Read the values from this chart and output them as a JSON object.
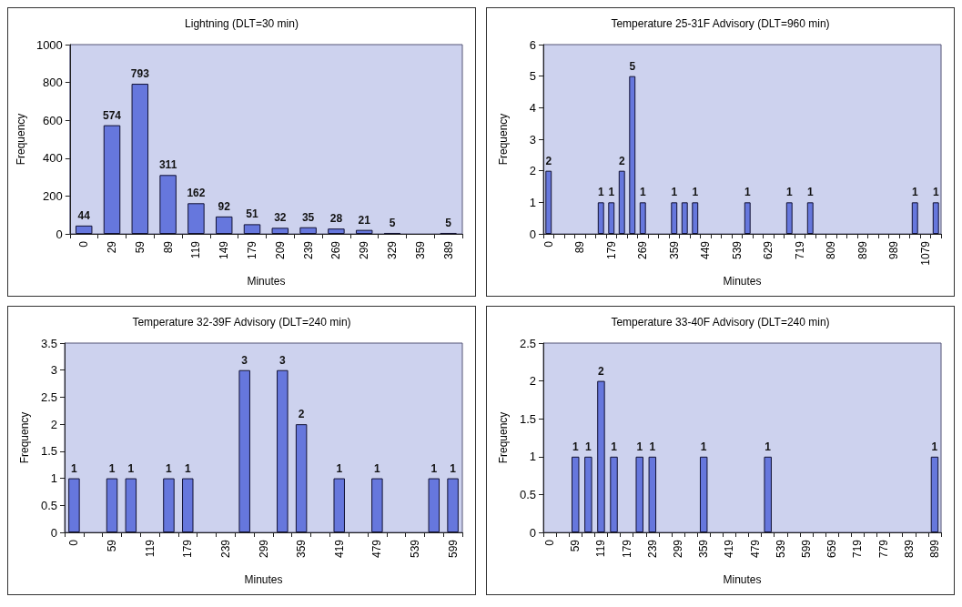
{
  "chart_data": [
    {
      "type": "bar",
      "title": "Lightning (DLT=30 min)",
      "xlabel": "Minutes",
      "ylabel": "Frequency",
      "color": "#6677dd",
      "categories": [
        "0",
        "29",
        "59",
        "89",
        "119",
        "149",
        "179",
        "209",
        "239",
        "269",
        "299",
        "329",
        "359",
        "389"
      ],
      "values": [
        44,
        574,
        793,
        311,
        162,
        92,
        51,
        32,
        35,
        28,
        21,
        5,
        0,
        5
      ],
      "value_labels": [
        "44",
        "574",
        "793",
        "311",
        "162",
        "92",
        "51",
        "32",
        "35",
        "28",
        "21",
        "5",
        null,
        "5"
      ],
      "ylim": [
        0,
        1000
      ],
      "yticks": [
        0,
        200,
        400,
        600,
        800,
        1000
      ]
    },
    {
      "type": "bar",
      "title": "Temperature 25-31F Advisory (DLT=960 min)",
      "xlabel": "Minutes",
      "ylabel": "Frequency",
      "color": "#6677dd",
      "categories": [
        "0",
        null,
        null,
        "89",
        null,
        null,
        "179",
        null,
        null,
        "269",
        null,
        null,
        "359",
        null,
        null,
        "449",
        null,
        null,
        "539",
        null,
        null,
        "629",
        null,
        null,
        "719",
        null,
        null,
        "809",
        null,
        null,
        "899",
        null,
        null,
        "989",
        null,
        null,
        "1079",
        null
      ],
      "values": [
        2,
        0,
        0,
        0,
        0,
        1,
        1,
        2,
        5,
        1,
        0,
        0,
        1,
        1,
        1,
        0,
        0,
        0,
        0,
        1,
        0,
        0,
        0,
        1,
        0,
        1,
        0,
        0,
        0,
        0,
        0,
        0,
        0,
        0,
        0,
        1,
        0,
        1
      ],
      "value_labels": [
        "2",
        null,
        null,
        null,
        null,
        "1",
        "1",
        "2",
        "5",
        "1",
        null,
        null,
        "1",
        null,
        "1",
        null,
        null,
        null,
        null,
        "1",
        null,
        null,
        null,
        "1",
        null,
        "1",
        null,
        null,
        null,
        null,
        null,
        null,
        null,
        null,
        null,
        "1",
        null,
        "1"
      ],
      "ylim": [
        0,
        6
      ],
      "yticks": [
        0,
        1,
        2,
        3,
        4,
        5,
        6
      ]
    },
    {
      "type": "bar",
      "title": "Temperature 32-39F Advisory (DLT=240 min)",
      "xlabel": "Minutes",
      "ylabel": "Frequency",
      "color": "#6677dd",
      "categories": [
        "0",
        null,
        "59",
        null,
        "119",
        null,
        "179",
        null,
        "239",
        null,
        "299",
        null,
        "359",
        null,
        "419",
        null,
        "479",
        null,
        "539",
        null,
        "599"
      ],
      "values": [
        1,
        0,
        1,
        1,
        0,
        1,
        1,
        0,
        0,
        3,
        0,
        3,
        2,
        0,
        1,
        0,
        1,
        0,
        0,
        1,
        1
      ],
      "value_labels": [
        "1",
        null,
        "1",
        "1",
        null,
        "1",
        "1",
        null,
        null,
        "3",
        null,
        "3",
        "2",
        null,
        "1",
        null,
        "1",
        null,
        null,
        "1",
        "1"
      ],
      "ylim": [
        0,
        3.5
      ],
      "yticks": [
        0,
        0.5,
        1,
        1.5,
        2,
        2.5,
        3,
        3.5
      ]
    },
    {
      "type": "bar",
      "title": "Temperature 33-40F Advisory (DLT=240 min)",
      "xlabel": "Minutes",
      "ylabel": "Frequency",
      "color": "#6677dd",
      "categories": [
        "0",
        null,
        "59",
        null,
        "119",
        null,
        "179",
        null,
        "239",
        null,
        "299",
        null,
        "359",
        null,
        "419",
        null,
        "479",
        null,
        "539",
        null,
        "599",
        null,
        "659",
        null,
        "719",
        null,
        "779",
        null,
        "839",
        null,
        "899"
      ],
      "values": [
        0,
        0,
        1,
        1,
        2,
        1,
        0,
        1,
        1,
        0,
        0,
        0,
        1,
        0,
        0,
        0,
        0,
        1,
        0,
        0,
        0,
        0,
        0,
        0,
        0,
        0,
        0,
        0,
        0,
        0,
        1
      ],
      "value_labels": [
        null,
        null,
        "1",
        "1",
        "2",
        "1",
        null,
        "1",
        "1",
        null,
        null,
        null,
        "1",
        null,
        null,
        null,
        null,
        "1",
        null,
        null,
        null,
        null,
        null,
        null,
        null,
        null,
        null,
        null,
        null,
        null,
        "1"
      ],
      "ylim": [
        0,
        2.5
      ],
      "yticks": [
        0,
        0.5,
        1,
        1.5,
        2,
        2.5
      ]
    }
  ]
}
